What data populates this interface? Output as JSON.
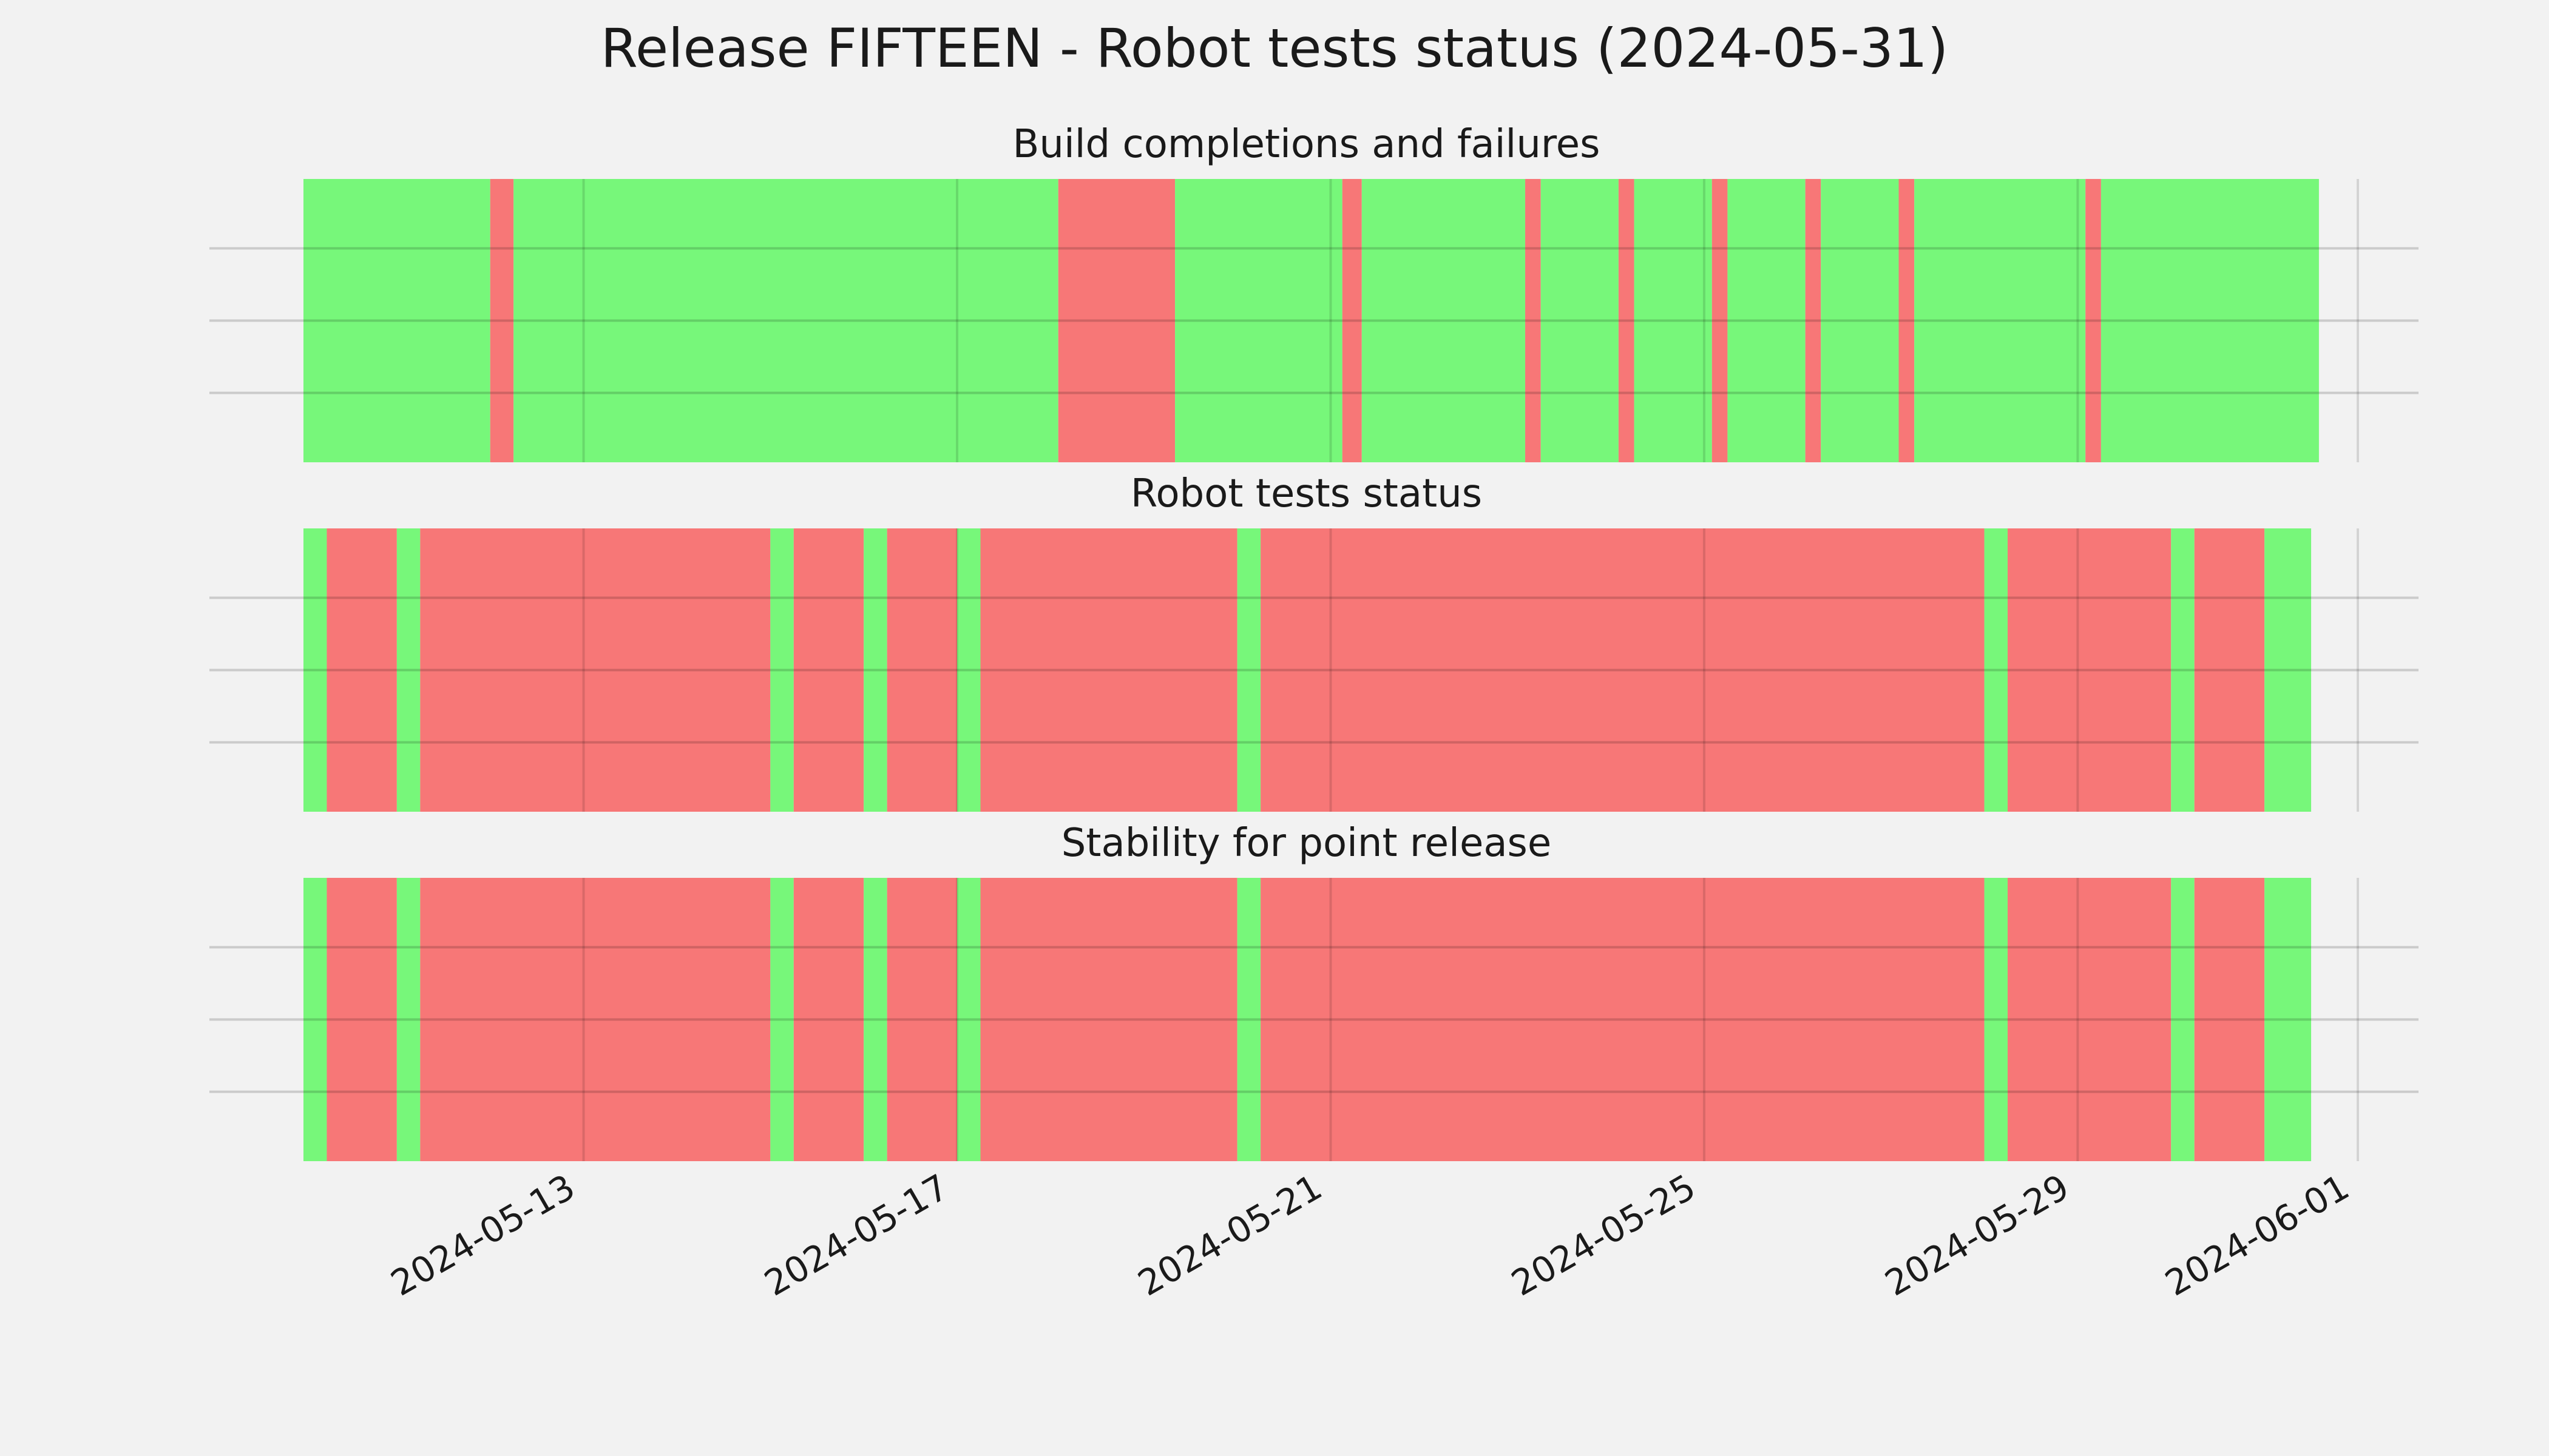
{
  "title": "Release FIFTEEN - Robot tests status (2024-05-31)",
  "colors": {
    "background": "#f2f2f2",
    "pass": "#77f77a",
    "fail": "#f77777",
    "grid": "#cbcbcb"
  },
  "chart_data": [
    {
      "type": "timeline",
      "title": "Build completions and failures",
      "xlim": [
        "2024-05-10",
        "2024-06-01"
      ],
      "x_ticks": [
        "2024-05-13",
        "2024-05-17",
        "2024-05-21",
        "2024-05-25",
        "2024-05-29",
        "2024-06-01"
      ],
      "grid": true,
      "segments": [
        {
          "start": "2024-05-10T00:00",
          "end": "2024-05-12T00:00",
          "status": "pass"
        },
        {
          "start": "2024-05-12T00:00",
          "end": "2024-05-12T06:00",
          "status": "fail"
        },
        {
          "start": "2024-05-12T06:00",
          "end": "2024-05-18T02:00",
          "status": "pass"
        },
        {
          "start": "2024-05-18T02:00",
          "end": "2024-05-19T08:00",
          "status": "fail"
        },
        {
          "start": "2024-05-19T08:00",
          "end": "2024-05-21T03:00",
          "status": "pass"
        },
        {
          "start": "2024-05-21T03:00",
          "end": "2024-05-21T08:00",
          "status": "fail"
        },
        {
          "start": "2024-05-21T08:00",
          "end": "2024-05-23T02:00",
          "status": "pass"
        },
        {
          "start": "2024-05-23T02:00",
          "end": "2024-05-23T06:00",
          "status": "fail"
        },
        {
          "start": "2024-05-23T06:00",
          "end": "2024-05-24T02:00",
          "status": "pass"
        },
        {
          "start": "2024-05-24T02:00",
          "end": "2024-05-24T06:00",
          "status": "fail"
        },
        {
          "start": "2024-05-24T06:00",
          "end": "2024-05-25T02:00",
          "status": "pass"
        },
        {
          "start": "2024-05-25T02:00",
          "end": "2024-05-25T06:00",
          "status": "fail"
        },
        {
          "start": "2024-05-25T06:00",
          "end": "2024-05-26T02:00",
          "status": "pass"
        },
        {
          "start": "2024-05-26T02:00",
          "end": "2024-05-26T06:00",
          "status": "fail"
        },
        {
          "start": "2024-05-26T06:00",
          "end": "2024-05-27T02:00",
          "status": "pass"
        },
        {
          "start": "2024-05-27T02:00",
          "end": "2024-05-27T06:00",
          "status": "fail"
        },
        {
          "start": "2024-05-27T06:00",
          "end": "2024-05-29T02:00",
          "status": "pass"
        },
        {
          "start": "2024-05-29T02:00",
          "end": "2024-05-29T06:00",
          "status": "fail"
        },
        {
          "start": "2024-05-29T06:00",
          "end": "2024-05-31T14:00",
          "status": "pass"
        }
      ]
    },
    {
      "type": "timeline",
      "title": "Robot tests status",
      "xlim": [
        "2024-05-10",
        "2024-06-01"
      ],
      "x_ticks": [
        "2024-05-13",
        "2024-05-17",
        "2024-05-21",
        "2024-05-25",
        "2024-05-29",
        "2024-06-01"
      ],
      "grid": true,
      "segments": [
        {
          "start": "2024-05-10T00:00",
          "end": "2024-05-10T06:00",
          "status": "pass"
        },
        {
          "start": "2024-05-10T06:00",
          "end": "2024-05-11T00:00",
          "status": "fail"
        },
        {
          "start": "2024-05-11T00:00",
          "end": "2024-05-11T06:00",
          "status": "pass"
        },
        {
          "start": "2024-05-11T06:00",
          "end": "2024-05-15T00:00",
          "status": "fail"
        },
        {
          "start": "2024-05-15T00:00",
          "end": "2024-05-15T06:00",
          "status": "pass"
        },
        {
          "start": "2024-05-15T06:00",
          "end": "2024-05-16T00:00",
          "status": "fail"
        },
        {
          "start": "2024-05-16T00:00",
          "end": "2024-05-16T06:00",
          "status": "pass"
        },
        {
          "start": "2024-05-16T06:00",
          "end": "2024-05-17T00:00",
          "status": "fail"
        },
        {
          "start": "2024-05-17T00:00",
          "end": "2024-05-17T06:00",
          "status": "pass"
        },
        {
          "start": "2024-05-17T06:00",
          "end": "2024-05-20T00:00",
          "status": "fail"
        },
        {
          "start": "2024-05-20T00:00",
          "end": "2024-05-20T06:00",
          "status": "pass"
        },
        {
          "start": "2024-05-20T06:00",
          "end": "2024-05-28T00:00",
          "status": "fail"
        },
        {
          "start": "2024-05-28T00:00",
          "end": "2024-05-28T06:00",
          "status": "pass"
        },
        {
          "start": "2024-05-28T06:00",
          "end": "2024-05-30T00:00",
          "status": "fail"
        },
        {
          "start": "2024-05-30T00:00",
          "end": "2024-05-30T06:00",
          "status": "pass"
        },
        {
          "start": "2024-05-30T06:00",
          "end": "2024-05-31T00:00",
          "status": "fail"
        },
        {
          "start": "2024-05-31T00:00",
          "end": "2024-05-31T12:00",
          "status": "pass"
        }
      ]
    },
    {
      "type": "timeline",
      "title": "Stability for point release",
      "xlim": [
        "2024-05-10",
        "2024-06-01"
      ],
      "x_ticks": [
        "2024-05-13",
        "2024-05-17",
        "2024-05-21",
        "2024-05-25",
        "2024-05-29",
        "2024-06-01"
      ],
      "grid": true,
      "segments": [
        {
          "start": "2024-05-10T00:00",
          "end": "2024-05-10T06:00",
          "status": "pass"
        },
        {
          "start": "2024-05-10T06:00",
          "end": "2024-05-11T00:00",
          "status": "fail"
        },
        {
          "start": "2024-05-11T00:00",
          "end": "2024-05-11T06:00",
          "status": "pass"
        },
        {
          "start": "2024-05-11T06:00",
          "end": "2024-05-15T00:00",
          "status": "fail"
        },
        {
          "start": "2024-05-15T00:00",
          "end": "2024-05-15T06:00",
          "status": "pass"
        },
        {
          "start": "2024-05-15T06:00",
          "end": "2024-05-16T00:00",
          "status": "fail"
        },
        {
          "start": "2024-05-16T00:00",
          "end": "2024-05-16T06:00",
          "status": "pass"
        },
        {
          "start": "2024-05-16T06:00",
          "end": "2024-05-17T00:00",
          "status": "fail"
        },
        {
          "start": "2024-05-17T00:00",
          "end": "2024-05-17T06:00",
          "status": "pass"
        },
        {
          "start": "2024-05-17T06:00",
          "end": "2024-05-20T00:00",
          "status": "fail"
        },
        {
          "start": "2024-05-20T00:00",
          "end": "2024-05-20T06:00",
          "status": "pass"
        },
        {
          "start": "2024-05-20T06:00",
          "end": "2024-05-28T00:00",
          "status": "fail"
        },
        {
          "start": "2024-05-28T00:00",
          "end": "2024-05-28T06:00",
          "status": "pass"
        },
        {
          "start": "2024-05-28T06:00",
          "end": "2024-05-30T00:00",
          "status": "fail"
        },
        {
          "start": "2024-05-30T00:00",
          "end": "2024-05-30T06:00",
          "status": "pass"
        },
        {
          "start": "2024-05-30T06:00",
          "end": "2024-05-31T00:00",
          "status": "fail"
        },
        {
          "start": "2024-05-31T00:00",
          "end": "2024-05-31T12:00",
          "status": "pass"
        }
      ]
    }
  ]
}
